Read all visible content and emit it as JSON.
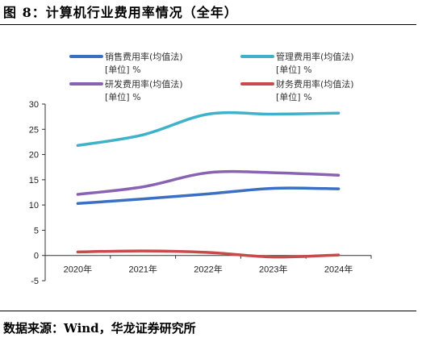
{
  "title": "图 8：计算机行业费用率情况（全年）",
  "source": "数据来源：Wind，华龙证券研究所",
  "chart_data": {
    "type": "line",
    "x": [
      "2020年",
      "2021年",
      "2022年",
      "2023年",
      "2024年"
    ],
    "ylim": [
      -5,
      30
    ],
    "yticks": [
      "30",
      "25",
      "20",
      "15",
      "10",
      "5",
      "0",
      "-5"
    ],
    "grid": false,
    "legend_position": "top",
    "series": [
      {
        "name": "销售费用率(均值法)",
        "unit": "[单位] %",
        "color": "#3a6fc4",
        "values": [
          10.3,
          11.2,
          12.2,
          13.3,
          13.2
        ]
      },
      {
        "name": "管理费用率(均值法)",
        "unit": "[单位] %",
        "color": "#3fb1c8",
        "values": [
          21.8,
          23.9,
          28.0,
          28.0,
          28.2
        ]
      },
      {
        "name": "研发费用率(均值法)",
        "unit": "[单位] %",
        "color": "#8a62b2",
        "values": [
          12.1,
          13.6,
          16.4,
          16.4,
          15.9
        ]
      },
      {
        "name": "财务费用率(均值法)",
        "unit": "[单位] %",
        "color": "#c84a4a",
        "values": [
          0.7,
          0.9,
          0.6,
          -0.3,
          0.1
        ]
      }
    ]
  }
}
